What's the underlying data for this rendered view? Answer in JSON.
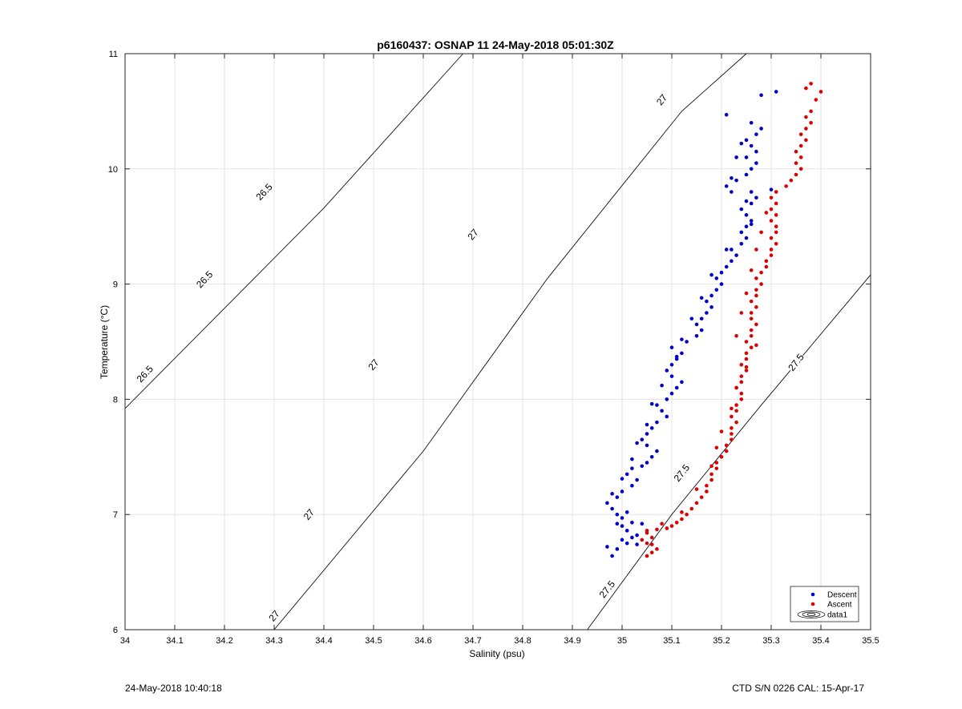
{
  "chart_data": {
    "type": "scatter",
    "title": "p6160437: OSNAP 11 24-May-2018 05:01:30Z",
    "xlabel": "Salinity (psu)",
    "ylabel": "Temperature (°C)",
    "xlim": [
      34,
      35.5
    ],
    "ylim": [
      6,
      11
    ],
    "xticks": [
      "34",
      "34.1",
      "34.2",
      "34.3",
      "34.4",
      "34.5",
      "34.6",
      "34.7",
      "34.8",
      "34.9",
      "35",
      "35.1",
      "35.2",
      "35.3",
      "35.4",
      "35.5"
    ],
    "yticks": [
      "6",
      "7",
      "8",
      "9",
      "10",
      "11"
    ],
    "grid": true,
    "legend_position": "bottom-right",
    "series": [
      {
        "name": "Descent",
        "color": "#0000cc",
        "points": [
          [
            34.97,
            6.72
          ],
          [
            34.98,
            6.64
          ],
          [
            34.99,
            6.7
          ],
          [
            35.0,
            6.78
          ],
          [
            35.01,
            6.75
          ],
          [
            35.02,
            6.8
          ],
          [
            35.03,
            6.82
          ],
          [
            35.01,
            6.86
          ],
          [
            35.0,
            6.9
          ],
          [
            35.02,
            6.93
          ],
          [
            35.04,
            6.92
          ],
          [
            35.0,
            6.97
          ],
          [
            34.99,
            7.0
          ],
          [
            35.01,
            7.02
          ],
          [
            34.98,
            7.05
          ],
          [
            34.97,
            7.1
          ],
          [
            34.99,
            7.15
          ],
          [
            35.0,
            7.2
          ],
          [
            35.02,
            7.25
          ],
          [
            35.03,
            7.3
          ],
          [
            35.01,
            7.35
          ],
          [
            35.02,
            7.4
          ],
          [
            35.04,
            7.42
          ],
          [
            35.05,
            7.45
          ],
          [
            35.06,
            7.5
          ],
          [
            35.07,
            7.55
          ],
          [
            35.05,
            7.6
          ],
          [
            35.04,
            7.65
          ],
          [
            35.05,
            7.7
          ],
          [
            35.06,
            7.75
          ],
          [
            35.07,
            7.8
          ],
          [
            35.09,
            7.85
          ],
          [
            35.08,
            7.9
          ],
          [
            35.07,
            7.95
          ],
          [
            35.09,
            8.0
          ],
          [
            35.1,
            8.05
          ],
          [
            35.11,
            8.1
          ],
          [
            35.12,
            8.15
          ],
          [
            35.1,
            8.2
          ],
          [
            35.09,
            8.25
          ],
          [
            35.1,
            8.3
          ],
          [
            35.11,
            8.35
          ],
          [
            35.12,
            8.4
          ],
          [
            35.1,
            8.45
          ],
          [
            35.13,
            8.5
          ],
          [
            35.15,
            8.55
          ],
          [
            35.16,
            8.6
          ],
          [
            35.15,
            8.65
          ],
          [
            35.16,
            8.7
          ],
          [
            35.17,
            8.75
          ],
          [
            35.18,
            8.8
          ],
          [
            35.17,
            8.85
          ],
          [
            35.18,
            8.9
          ],
          [
            35.19,
            8.95
          ],
          [
            35.2,
            9.0
          ],
          [
            35.19,
            9.05
          ],
          [
            35.2,
            9.1
          ],
          [
            35.21,
            9.15
          ],
          [
            35.22,
            9.2
          ],
          [
            35.23,
            9.25
          ],
          [
            35.22,
            9.3
          ],
          [
            35.24,
            9.35
          ],
          [
            35.25,
            9.4
          ],
          [
            35.24,
            9.45
          ],
          [
            35.25,
            9.5
          ],
          [
            35.26,
            9.55
          ],
          [
            35.25,
            9.6
          ],
          [
            35.24,
            9.65
          ],
          [
            35.26,
            9.7
          ],
          [
            35.27,
            9.75
          ],
          [
            35.26,
            9.8
          ],
          [
            35.21,
            9.85
          ],
          [
            35.22,
            9.8
          ],
          [
            35.23,
            9.9
          ],
          [
            35.25,
            9.95
          ],
          [
            35.26,
            10.0
          ],
          [
            35.27,
            10.05
          ],
          [
            35.25,
            10.1
          ],
          [
            35.27,
            10.15
          ],
          [
            35.26,
            10.2
          ],
          [
            35.25,
            10.25
          ],
          [
            35.27,
            10.3
          ],
          [
            35.28,
            10.35
          ],
          [
            35.26,
            10.4
          ],
          [
            35.21,
            10.47
          ],
          [
            35.28,
            10.64
          ],
          [
            35.31,
            10.67
          ],
          [
            35.3,
            9.82
          ],
          [
            35.24,
            10.22
          ],
          [
            35.23,
            10.1
          ],
          [
            35.22,
            9.92
          ],
          [
            35.25,
            9.72
          ],
          [
            35.26,
            9.52
          ],
          [
            35.21,
            9.3
          ],
          [
            35.18,
            9.08
          ],
          [
            35.16,
            8.88
          ],
          [
            35.14,
            8.7
          ],
          [
            35.12,
            8.52
          ],
          [
            35.11,
            8.37
          ],
          [
            35.08,
            8.12
          ],
          [
            35.06,
            7.96
          ],
          [
            35.05,
            7.78
          ],
          [
            35.03,
            7.62
          ],
          [
            35.02,
            7.48
          ],
          [
            35.0,
            7.31
          ],
          [
            34.98,
            7.18
          ],
          [
            34.99,
            6.92
          ],
          [
            35.03,
            6.74
          ]
        ]
      },
      {
        "name": "Ascent",
        "color": "#dd0000",
        "points": [
          [
            35.05,
            6.64
          ],
          [
            35.06,
            6.67
          ],
          [
            35.07,
            6.7
          ],
          [
            35.05,
            6.75
          ],
          [
            35.04,
            6.78
          ],
          [
            35.06,
            6.8
          ],
          [
            35.05,
            6.84
          ],
          [
            35.07,
            6.87
          ],
          [
            35.09,
            6.88
          ],
          [
            35.1,
            6.9
          ],
          [
            35.11,
            6.93
          ],
          [
            35.12,
            6.96
          ],
          [
            35.13,
            7.0
          ],
          [
            35.14,
            7.05
          ],
          [
            35.15,
            7.1
          ],
          [
            35.16,
            7.15
          ],
          [
            35.17,
            7.2
          ],
          [
            35.17,
            7.25
          ],
          [
            35.18,
            7.3
          ],
          [
            35.18,
            7.35
          ],
          [
            35.19,
            7.4
          ],
          [
            35.19,
            7.45
          ],
          [
            35.2,
            7.5
          ],
          [
            35.21,
            7.55
          ],
          [
            35.21,
            7.6
          ],
          [
            35.22,
            7.65
          ],
          [
            35.22,
            7.7
          ],
          [
            35.22,
            7.75
          ],
          [
            35.23,
            7.8
          ],
          [
            35.22,
            7.85
          ],
          [
            35.23,
            7.9
          ],
          [
            35.23,
            7.95
          ],
          [
            35.24,
            8.0
          ],
          [
            35.24,
            8.05
          ],
          [
            35.23,
            8.1
          ],
          [
            35.24,
            8.15
          ],
          [
            35.24,
            8.2
          ],
          [
            35.25,
            8.25
          ],
          [
            35.24,
            8.3
          ],
          [
            35.25,
            8.35
          ],
          [
            35.25,
            8.4
          ],
          [
            35.26,
            8.45
          ],
          [
            35.25,
            8.5
          ],
          [
            35.26,
            8.55
          ],
          [
            35.26,
            8.6
          ],
          [
            35.27,
            8.65
          ],
          [
            35.26,
            8.7
          ],
          [
            35.26,
            8.75
          ],
          [
            35.27,
            8.8
          ],
          [
            35.26,
            8.85
          ],
          [
            35.27,
            8.9
          ],
          [
            35.27,
            8.95
          ],
          [
            35.28,
            9.0
          ],
          [
            35.27,
            9.05
          ],
          [
            35.28,
            9.1
          ],
          [
            35.29,
            9.15
          ],
          [
            35.29,
            9.2
          ],
          [
            35.3,
            9.25
          ],
          [
            35.3,
            9.3
          ],
          [
            35.31,
            9.35
          ],
          [
            35.3,
            9.4
          ],
          [
            35.31,
            9.45
          ],
          [
            35.31,
            9.5
          ],
          [
            35.3,
            9.55
          ],
          [
            35.31,
            9.6
          ],
          [
            35.3,
            9.65
          ],
          [
            35.31,
            9.7
          ],
          [
            35.3,
            9.75
          ],
          [
            35.31,
            9.8
          ],
          [
            35.33,
            9.85
          ],
          [
            35.34,
            9.9
          ],
          [
            35.35,
            9.95
          ],
          [
            35.36,
            10.0
          ],
          [
            35.35,
            10.05
          ],
          [
            35.36,
            10.1
          ],
          [
            35.35,
            10.15
          ],
          [
            35.36,
            10.2
          ],
          [
            35.37,
            10.25
          ],
          [
            35.36,
            10.3
          ],
          [
            35.37,
            10.35
          ],
          [
            35.38,
            10.4
          ],
          [
            35.37,
            10.45
          ],
          [
            35.38,
            10.5
          ],
          [
            35.39,
            10.6
          ],
          [
            35.37,
            10.7
          ],
          [
            35.4,
            10.67
          ],
          [
            35.38,
            10.74
          ],
          [
            35.29,
            9.62
          ],
          [
            35.28,
            9.45
          ],
          [
            35.27,
            9.3
          ],
          [
            35.26,
            9.12
          ],
          [
            35.25,
            8.92
          ],
          [
            35.24,
            8.75
          ],
          [
            35.23,
            8.55
          ],
          [
            35.27,
            8.47
          ],
          [
            35.25,
            8.28
          ],
          [
            35.23,
            8.1
          ],
          [
            35.22,
            7.92
          ],
          [
            35.2,
            7.72
          ],
          [
            35.19,
            7.58
          ],
          [
            35.18,
            7.42
          ],
          [
            35.15,
            7.22
          ],
          [
            35.12,
            7.02
          ],
          [
            35.08,
            6.92
          ],
          [
            35.05,
            6.86
          ],
          [
            35.06,
            6.74
          ]
        ]
      }
    ],
    "contours": [
      {
        "label": "26.5",
        "points": [
          [
            34.0,
            7.92
          ],
          [
            34.4,
            9.66
          ],
          [
            34.68,
            11.0
          ]
        ],
        "label_positions": [
          [
            34.04,
            8.22
          ],
          [
            34.16,
            9.04
          ],
          [
            34.28,
            9.8
          ]
        ]
      },
      {
        "label": "27",
        "points": [
          [
            34.3,
            6.0
          ],
          [
            34.6,
            7.55
          ],
          [
            34.85,
            9.05
          ],
          [
            35.12,
            10.5
          ],
          [
            35.25,
            11.0
          ]
        ],
        "label_positions": [
          [
            34.3,
            6.12
          ],
          [
            34.37,
            7.0
          ],
          [
            34.5,
            8.3
          ],
          [
            34.7,
            9.43
          ],
          [
            35.08,
            10.6
          ]
        ]
      },
      {
        "label": "27.5",
        "points": [
          [
            34.93,
            6.0
          ],
          [
            35.1,
            7.0
          ],
          [
            35.28,
            7.95
          ],
          [
            35.5,
            9.08
          ]
        ],
        "label_positions": [
          [
            34.97,
            6.35
          ],
          [
            35.12,
            7.36
          ],
          [
            35.35,
            8.32
          ]
        ]
      }
    ],
    "legend": [
      "Descent",
      "Ascent",
      "data1"
    ]
  },
  "footer": {
    "left": "24-May-2018 10:40:18",
    "right": "CTD S/N 0226  CAL: 15-Apr-17"
  }
}
